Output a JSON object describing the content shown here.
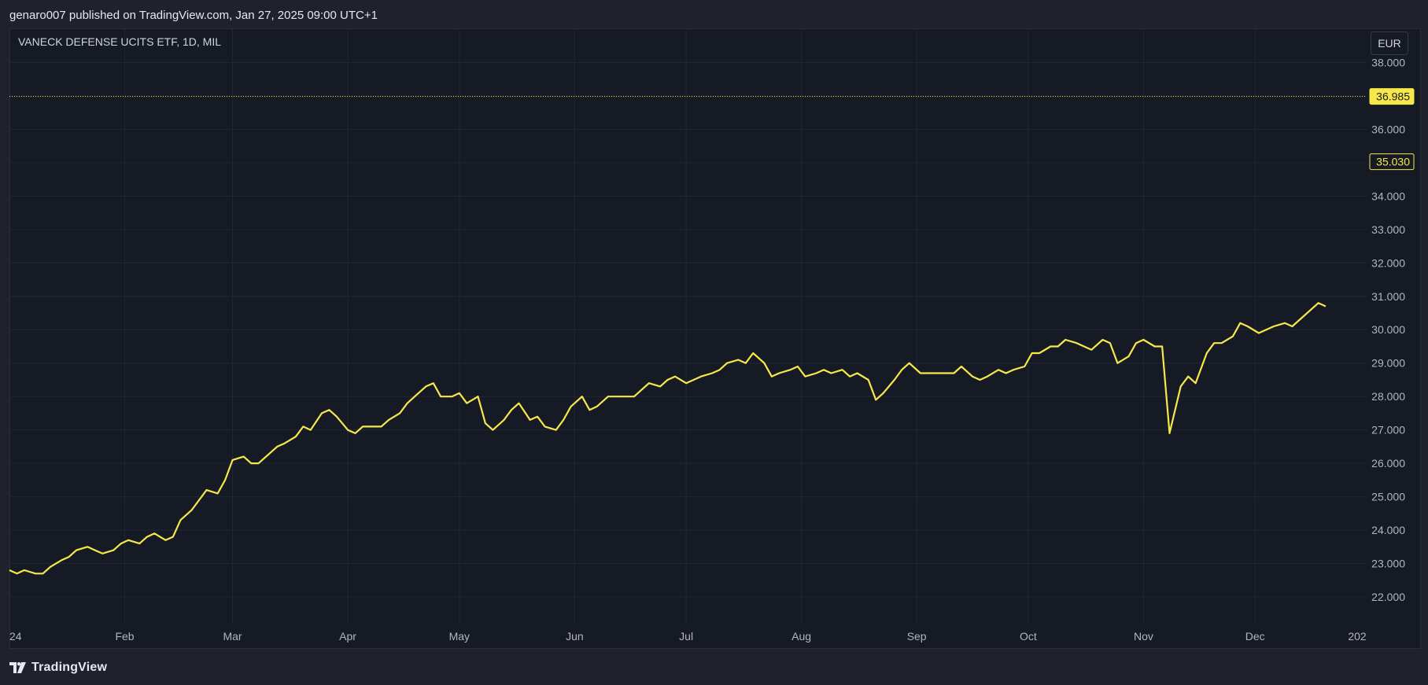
{
  "header": {
    "published_text": "genaro007 published on TradingView.com, Jan 27, 2025 09:00 UTC+1"
  },
  "legend": {
    "symbol_text": "VANECK DEFENSE UCITS ETF, 1D, MIL"
  },
  "currency_button": {
    "label": "EUR"
  },
  "footer": {
    "brand": "TradingView"
  },
  "colors": {
    "background": "#161a25",
    "line": "#f7e84a",
    "grid": "#232733",
    "axis_text": "#b2b5be",
    "price_label_bg": "#f7e84a"
  },
  "chart_data": {
    "type": "line",
    "title": "VANECK DEFENSE UCITS ETF, 1D, MIL",
    "xlabel": "",
    "ylabel": "",
    "ylim": [
      21.2,
      39.0
    ],
    "y_ticks": [
      "22.000",
      "23.000",
      "24.000",
      "25.000",
      "26.000",
      "27.000",
      "28.000",
      "29.000",
      "30.000",
      "31.000",
      "32.000",
      "33.000",
      "34.000",
      "35.000",
      "36.000",
      "37.000",
      "38.000"
    ],
    "y_tick_values": [
      22,
      23,
      24,
      25,
      26,
      27,
      28,
      29,
      30,
      31,
      32,
      33,
      34,
      35,
      36,
      37,
      38
    ],
    "x_ticks": [
      "24",
      "Feb",
      "Mar",
      "Apr",
      "May",
      "Jun",
      "Jul",
      "Aug",
      "Sep",
      "Oct",
      "Nov",
      "Dec",
      "202"
    ],
    "x_tick_dates": [
      "2024-01-01",
      "2024-02-01",
      "2024-03-01",
      "2024-04-01",
      "2024-05-01",
      "2024-06-01",
      "2024-07-01",
      "2024-08-01",
      "2024-09-01",
      "2024-10-01",
      "2024-11-01",
      "2024-12-01",
      "2025-01-01"
    ],
    "grid": true,
    "reference_line": {
      "value": 36.985,
      "label": "36.985",
      "style": "dotted"
    },
    "last_price_label": {
      "value": 35.03,
      "label": "35.030"
    },
    "series": [
      {
        "points": [
          [
            "2024-01-01",
            22.8
          ],
          [
            "2024-01-03",
            22.7
          ],
          [
            "2024-01-05",
            22.8
          ],
          [
            "2024-01-08",
            22.7
          ],
          [
            "2024-01-10",
            22.7
          ],
          [
            "2024-01-12",
            22.9
          ],
          [
            "2024-01-15",
            23.1
          ],
          [
            "2024-01-17",
            23.2
          ],
          [
            "2024-01-19",
            23.4
          ],
          [
            "2024-01-22",
            23.5
          ],
          [
            "2024-01-24",
            23.4
          ],
          [
            "2024-01-26",
            23.3
          ],
          [
            "2024-01-29",
            23.4
          ],
          [
            "2024-01-31",
            23.6
          ],
          [
            "2024-02-02",
            23.7
          ],
          [
            "2024-02-05",
            23.6
          ],
          [
            "2024-02-07",
            23.8
          ],
          [
            "2024-02-09",
            23.9
          ],
          [
            "2024-02-12",
            23.7
          ],
          [
            "2024-02-14",
            23.8
          ],
          [
            "2024-02-16",
            24.3
          ],
          [
            "2024-02-19",
            24.6
          ],
          [
            "2024-02-21",
            24.9
          ],
          [
            "2024-02-23",
            25.2
          ],
          [
            "2024-02-26",
            25.1
          ],
          [
            "2024-02-28",
            25.5
          ],
          [
            "2024-03-01",
            26.1
          ],
          [
            "2024-03-04",
            26.2
          ],
          [
            "2024-03-06",
            26.0
          ],
          [
            "2024-03-08",
            26.0
          ],
          [
            "2024-03-11",
            26.3
          ],
          [
            "2024-03-13",
            26.5
          ],
          [
            "2024-03-15",
            26.6
          ],
          [
            "2024-03-18",
            26.8
          ],
          [
            "2024-03-20",
            27.1
          ],
          [
            "2024-03-22",
            27.0
          ],
          [
            "2024-03-25",
            27.5
          ],
          [
            "2024-03-27",
            27.6
          ],
          [
            "2024-03-29",
            27.4
          ],
          [
            "2024-04-01",
            27.0
          ],
          [
            "2024-04-03",
            26.9
          ],
          [
            "2024-04-05",
            27.1
          ],
          [
            "2024-04-08",
            27.1
          ],
          [
            "2024-04-10",
            27.1
          ],
          [
            "2024-04-12",
            27.3
          ],
          [
            "2024-04-15",
            27.5
          ],
          [
            "2024-04-17",
            27.8
          ],
          [
            "2024-04-19",
            28.0
          ],
          [
            "2024-04-22",
            28.3
          ],
          [
            "2024-04-24",
            28.4
          ],
          [
            "2024-04-26",
            28.0
          ],
          [
            "2024-04-29",
            28.0
          ],
          [
            "2024-05-01",
            28.1
          ],
          [
            "2024-05-03",
            27.8
          ],
          [
            "2024-05-06",
            28.0
          ],
          [
            "2024-05-08",
            27.2
          ],
          [
            "2024-05-10",
            27.0
          ],
          [
            "2024-05-13",
            27.3
          ],
          [
            "2024-05-15",
            27.6
          ],
          [
            "2024-05-17",
            27.8
          ],
          [
            "2024-05-20",
            27.3
          ],
          [
            "2024-05-22",
            27.4
          ],
          [
            "2024-05-24",
            27.1
          ],
          [
            "2024-05-27",
            27.0
          ],
          [
            "2024-05-29",
            27.3
          ],
          [
            "2024-05-31",
            27.7
          ],
          [
            "2024-06-03",
            28.0
          ],
          [
            "2024-06-05",
            27.6
          ],
          [
            "2024-06-07",
            27.7
          ],
          [
            "2024-06-10",
            28.0
          ],
          [
            "2024-06-12",
            28.0
          ],
          [
            "2024-06-14",
            28.0
          ],
          [
            "2024-06-17",
            28.0
          ],
          [
            "2024-06-19",
            28.2
          ],
          [
            "2024-06-21",
            28.4
          ],
          [
            "2024-06-24",
            28.3
          ],
          [
            "2024-06-26",
            28.5
          ],
          [
            "2024-06-28",
            28.6
          ],
          [
            "2024-07-01",
            28.4
          ],
          [
            "2024-07-03",
            28.5
          ],
          [
            "2024-07-05",
            28.6
          ],
          [
            "2024-07-08",
            28.7
          ],
          [
            "2024-07-10",
            28.8
          ],
          [
            "2024-07-12",
            29.0
          ],
          [
            "2024-07-15",
            29.1
          ],
          [
            "2024-07-17",
            29.0
          ],
          [
            "2024-07-19",
            29.3
          ],
          [
            "2024-07-22",
            29.0
          ],
          [
            "2024-07-24",
            28.6
          ],
          [
            "2024-07-26",
            28.7
          ],
          [
            "2024-07-29",
            28.8
          ],
          [
            "2024-07-31",
            28.9
          ],
          [
            "2024-08-02",
            28.6
          ],
          [
            "2024-08-05",
            28.7
          ],
          [
            "2024-08-07",
            28.8
          ],
          [
            "2024-08-09",
            28.7
          ],
          [
            "2024-08-12",
            28.8
          ],
          [
            "2024-08-14",
            28.6
          ],
          [
            "2024-08-16",
            28.7
          ],
          [
            "2024-08-19",
            28.5
          ],
          [
            "2024-08-21",
            27.9
          ],
          [
            "2024-08-23",
            28.1
          ],
          [
            "2024-08-26",
            28.5
          ],
          [
            "2024-08-28",
            28.8
          ],
          [
            "2024-08-30",
            29.0
          ],
          [
            "2024-09-02",
            28.7
          ],
          [
            "2024-09-04",
            28.7
          ],
          [
            "2024-09-06",
            28.7
          ],
          [
            "2024-09-09",
            28.7
          ],
          [
            "2024-09-11",
            28.7
          ],
          [
            "2024-09-13",
            28.9
          ],
          [
            "2024-09-16",
            28.6
          ],
          [
            "2024-09-18",
            28.5
          ],
          [
            "2024-09-20",
            28.6
          ],
          [
            "2024-09-23",
            28.8
          ],
          [
            "2024-09-25",
            28.7
          ],
          [
            "2024-09-27",
            28.8
          ],
          [
            "2024-09-30",
            28.9
          ],
          [
            "2024-10-02",
            29.3
          ],
          [
            "2024-10-04",
            29.3
          ],
          [
            "2024-10-07",
            29.5
          ],
          [
            "2024-10-09",
            29.5
          ],
          [
            "2024-10-11",
            29.7
          ],
          [
            "2024-10-14",
            29.6
          ],
          [
            "2024-10-16",
            29.5
          ],
          [
            "2024-10-18",
            29.4
          ],
          [
            "2024-10-21",
            29.7
          ],
          [
            "2024-10-23",
            29.6
          ],
          [
            "2024-10-25",
            29.0
          ],
          [
            "2024-10-28",
            29.2
          ],
          [
            "2024-10-30",
            29.6
          ],
          [
            "2024-11-01",
            29.7
          ],
          [
            "2024-11-04",
            29.5
          ],
          [
            "2024-11-06",
            29.5
          ],
          [
            "2024-11-08",
            26.9
          ],
          [
            "2024-11-11",
            28.3
          ],
          [
            "2024-11-13",
            28.6
          ],
          [
            "2024-11-15",
            28.4
          ],
          [
            "2024-11-18",
            29.3
          ],
          [
            "2024-11-20",
            29.6
          ],
          [
            "2024-11-22",
            29.6
          ],
          [
            "2024-11-25",
            29.8
          ],
          [
            "2024-11-27",
            30.2
          ],
          [
            "2024-11-29",
            30.1
          ],
          [
            "2024-12-02",
            29.9
          ],
          [
            "2024-12-04",
            30.0
          ],
          [
            "2024-12-06",
            30.1
          ],
          [
            "2024-12-09",
            30.2
          ],
          [
            "2024-12-11",
            30.1
          ],
          [
            "2024-12-13",
            30.3
          ],
          [
            "2024-12-16",
            30.6
          ],
          [
            "2024-12-18",
            30.8
          ],
          [
            "2024-12-20",
            30.7
          ]
        ]
      }
    ]
  }
}
